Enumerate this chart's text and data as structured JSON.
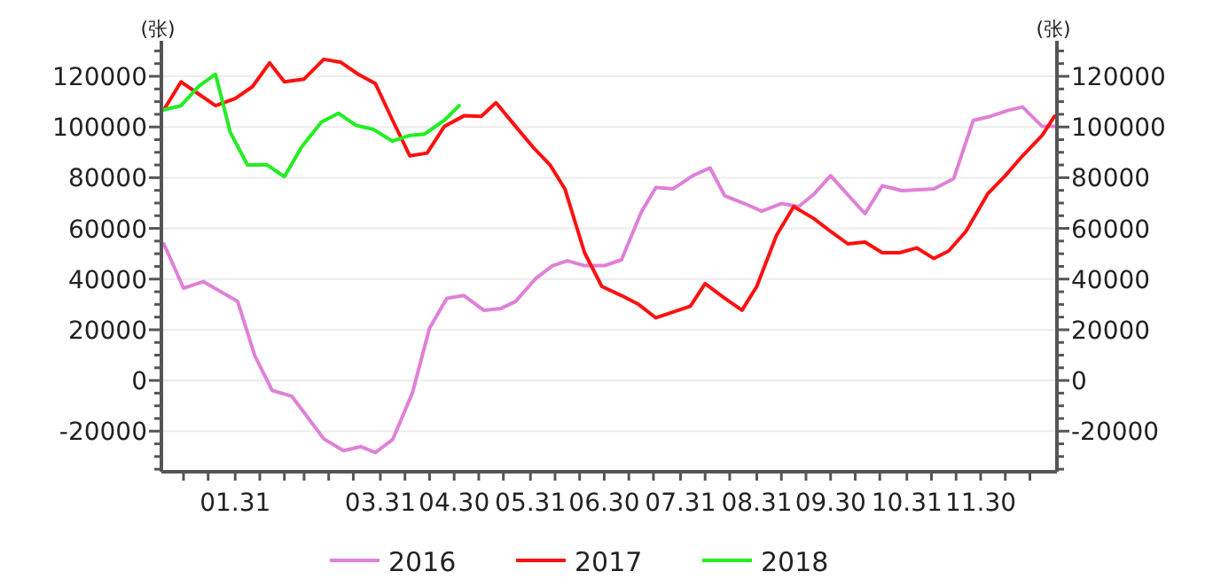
{
  "chart_data": {
    "type": "line",
    "ylabel": "(张)",
    "y2label": "(张)",
    "xlim": [
      "--01-01",
      "--12-31"
    ],
    "xticks": [
      {
        "value": "--01-10",
        "label": null
      },
      {
        "value": "--01-20",
        "label": null
      },
      {
        "value": "--01-31",
        "label": "01.31"
      },
      {
        "value": "--02-10",
        "label": null
      },
      {
        "value": "--02-20",
        "label": null
      },
      {
        "value": "--02-28",
        "label": null
      },
      {
        "value": "--03-10",
        "label": null
      },
      {
        "value": "--03-20",
        "label": null
      },
      {
        "value": "--03-31",
        "label": "03.31"
      },
      {
        "value": "--04-10",
        "label": null
      },
      {
        "value": "--04-20",
        "label": null
      },
      {
        "value": "--04-30",
        "label": "04.30"
      },
      {
        "value": "--05-10",
        "label": null
      },
      {
        "value": "--05-20",
        "label": null
      },
      {
        "value": "--05-31",
        "label": "05.31"
      },
      {
        "value": "--06-10",
        "label": null
      },
      {
        "value": "--06-20",
        "label": null
      },
      {
        "value": "--06-30",
        "label": "06.30"
      },
      {
        "value": "--07-10",
        "label": null
      },
      {
        "value": "--07-20",
        "label": null
      },
      {
        "value": "--07-31",
        "label": "07.31"
      },
      {
        "value": "--08-10",
        "label": null
      },
      {
        "value": "--08-20",
        "label": null
      },
      {
        "value": "--08-31",
        "label": "08.31"
      },
      {
        "value": "--09-10",
        "label": null
      },
      {
        "value": "--09-20",
        "label": null
      },
      {
        "value": "--09-30",
        "label": "09.30"
      },
      {
        "value": "--10-10",
        "label": null
      },
      {
        "value": "--10-20",
        "label": null
      },
      {
        "value": "--10-31",
        "label": "10.31"
      },
      {
        "value": "--11-10",
        "label": null
      },
      {
        "value": "--11-20",
        "label": null
      },
      {
        "value": "--11-30",
        "label": "11.30"
      },
      {
        "value": "--12-10",
        "label": null
      },
      {
        "value": "--12-20",
        "label": null
      }
    ],
    "ylim": [
      -36000,
      134000
    ],
    "yticks": [
      {
        "value": -35000,
        "label": null
      },
      {
        "value": -30000,
        "label": null
      },
      {
        "value": -25000,
        "label": null
      },
      -20000,
      {
        "value": -15000,
        "label": null
      },
      {
        "value": -10000,
        "label": null
      },
      {
        "value": -5000,
        "label": null
      },
      0,
      {
        "value": 5000,
        "label": null
      },
      {
        "value": 10000,
        "label": null
      },
      {
        "value": 15000,
        "label": null
      },
      20000,
      {
        "value": 25000,
        "label": null
      },
      {
        "value": 30000,
        "label": null
      },
      {
        "value": 35000,
        "label": null
      },
      40000,
      {
        "value": 45000,
        "label": null
      },
      {
        "value": 50000,
        "label": null
      },
      {
        "value": 55000,
        "label": null
      },
      60000,
      {
        "value": 65000,
        "label": null
      },
      {
        "value": 70000,
        "label": null
      },
      {
        "value": 75000,
        "label": null
      },
      80000,
      {
        "value": 85000,
        "label": null
      },
      {
        "value": 90000,
        "label": null
      },
      {
        "value": 95000,
        "label": null
      },
      100000,
      {
        "value": 105000,
        "label": null
      },
      {
        "value": 110000,
        "label": null
      },
      {
        "value": 115000,
        "label": null
      },
      120000,
      {
        "value": 125000,
        "label": null
      },
      {
        "value": 130000,
        "label": null
      }
    ],
    "y2lim": [
      -36000,
      134000
    ],
    "y2ticks": [
      {
        "value": -35000,
        "label": null
      },
      {
        "value": -30000,
        "label": null
      },
      {
        "value": -25000,
        "label": null
      },
      -20000,
      {
        "value": -15000,
        "label": null
      },
      {
        "value": -10000,
        "label": null
      },
      {
        "value": -5000,
        "label": null
      },
      0,
      {
        "value": 5000,
        "label": null
      },
      {
        "value": 10000,
        "label": null
      },
      {
        "value": 15000,
        "label": null
      },
      20000,
      {
        "value": 25000,
        "label": null
      },
      {
        "value": 30000,
        "label": null
      },
      {
        "value": 35000,
        "label": null
      },
      40000,
      {
        "value": 45000,
        "label": null
      },
      {
        "value": 50000,
        "label": null
      },
      {
        "value": 55000,
        "label": null
      },
      60000,
      {
        "value": 65000,
        "label": null
      },
      {
        "value": 70000,
        "label": null
      },
      {
        "value": 75000,
        "label": null
      },
      80000,
      {
        "value": 85000,
        "label": null
      },
      {
        "value": 90000,
        "label": null
      },
      {
        "value": 95000,
        "label": null
      },
      100000,
      {
        "value": 105000,
        "label": null
      },
      {
        "value": 110000,
        "label": null
      },
      {
        "value": 115000,
        "label": null
      },
      120000,
      {
        "value": 125000,
        "label": null
      },
      {
        "value": 130000,
        "label": null
      }
    ],
    "grid": "y",
    "legend": "bottom",
    "marker": "none",
    "line_style": "solid",
    "series": [
      {
        "name": "2016",
        "color": "#e080d8",
        "x": [
          "--01-02",
          "--01-10",
          "--01-18",
          "--02-01",
          "--02-08",
          "--02-15",
          "--02-23",
          "--03-08",
          "--03-16",
          "--03-23",
          "--03-29",
          "--04-05",
          "--04-13",
          "--04-20",
          "--04-27",
          "--05-04",
          "--05-12",
          "--05-19",
          "--05-25",
          "--06-02",
          "--06-09",
          "--06-15",
          "--06-22",
          "--06-30",
          "--07-07",
          "--07-15",
          "--07-21",
          "--07-28",
          "--08-05",
          "--08-12",
          "--08-18",
          "--08-26",
          "--09-02",
          "--09-10",
          "--09-17",
          "--09-23",
          "--09-30",
          "--10-07",
          "--10-14",
          "--10-21",
          "--10-29",
          "--11-11",
          "--11-19",
          "--11-27",
          "--12-04",
          "--12-11",
          "--12-17",
          "--12-25",
          "--12-30"
        ],
        "values": [
          53900,
          36400,
          39000,
          31200,
          9700,
          -3900,
          -6200,
          -23000,
          -27700,
          -26100,
          -28400,
          -23300,
          -5000,
          20700,
          32400,
          33500,
          27700,
          28400,
          31200,
          40100,
          45300,
          47200,
          45300,
          45300,
          47600,
          66300,
          76100,
          75600,
          80800,
          83900,
          72800,
          69800,
          66800,
          69800,
          68600,
          73300,
          80800,
          73300,
          65800,
          76800,
          74900,
          75600,
          79600,
          102600,
          104200,
          106500,
          107900,
          100200,
          100200
        ]
      },
      {
        "name": "2017",
        "color": "#ff1010",
        "x": [
          "--01-02",
          "--01-09",
          "--01-16",
          "--01-23",
          "--01-31",
          "--02-07",
          "--02-14",
          "--02-20",
          "--02-28",
          "--03-08",
          "--03-15",
          "--03-22",
          "--03-29",
          "--04-05",
          "--04-12",
          "--04-19",
          "--04-26",
          "--05-04",
          "--05-11",
          "--05-17",
          "--05-25",
          "--06-01",
          "--06-08",
          "--06-14",
          "--06-22",
          "--06-29",
          "--07-07",
          "--07-14",
          "--07-21",
          "--07-28",
          "--08-04",
          "--08-10",
          "--08-18",
          "--08-25",
          "--08-31",
          "--09-08",
          "--09-15",
          "--09-23",
          "--09-30",
          "--10-07",
          "--10-14",
          "--10-21",
          "--10-28",
          "--11-04",
          "--11-11",
          "--11-17",
          "--11-24",
          "--12-03",
          "--12-10",
          "--12-17",
          "--12-25",
          "--12-30"
        ],
        "values": [
          106800,
          117800,
          113100,
          108400,
          111200,
          115900,
          125300,
          117800,
          118900,
          126700,
          125500,
          120800,
          117100,
          102600,
          88600,
          89700,
          100200,
          104400,
          104200,
          109600,
          100200,
          92100,
          85000,
          75600,
          50400,
          37100,
          33500,
          30000,
          24700,
          27000,
          29300,
          38200,
          32400,
          27700,
          37100,
          57200,
          68600,
          64000,
          58800,
          53900,
          54600,
          50400,
          50400,
          52300,
          48100,
          51100,
          58800,
          73800,
          80800,
          88600,
          96700,
          104200
        ]
      },
      {
        "name": "2018",
        "color": "#22ee22",
        "x": [
          "--01-02",
          "--01-09",
          "--01-16",
          "--01-23",
          "--01-29",
          "--02-05",
          "--02-13",
          "--02-20",
          "--02-27",
          "--03-07",
          "--03-14",
          "--03-21",
          "--03-28",
          "--04-05",
          "--04-12",
          "--04-18",
          "--04-26",
          "--05-02"
        ],
        "values": [
          106800,
          108400,
          115900,
          120800,
          97900,
          85000,
          85000,
          80400,
          92100,
          101900,
          105400,
          100700,
          99100,
          94400,
          96700,
          97200,
          102600,
          108400
        ]
      }
    ]
  }
}
